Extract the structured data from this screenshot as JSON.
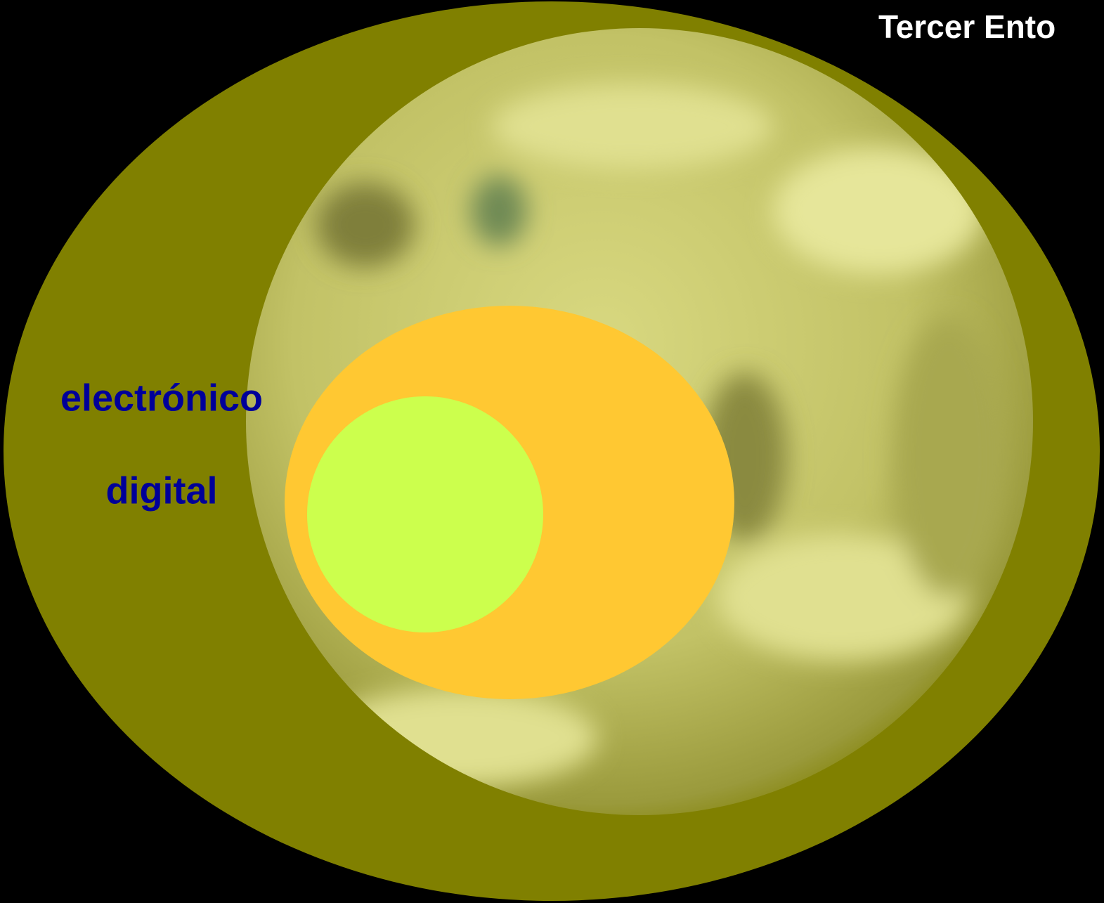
{
  "header": {
    "title": "Tercer Ento"
  },
  "labels": {
    "outer": "electrónico",
    "inner": "digital"
  }
}
